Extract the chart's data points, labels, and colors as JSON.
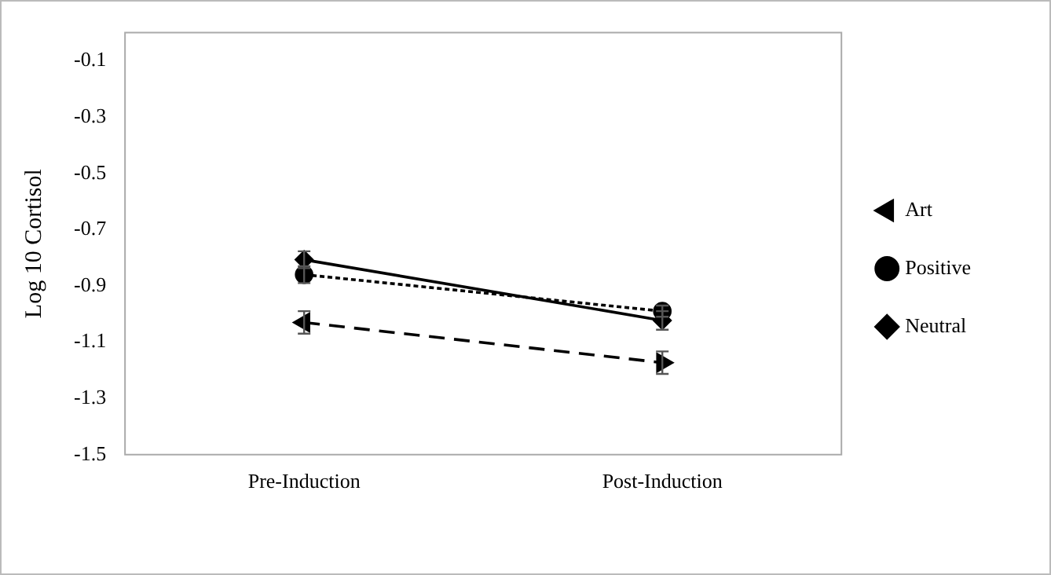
{
  "chart_data": {
    "type": "line",
    "ylabel": "Log 10 Cortisol",
    "categories": [
      "Pre-Induction",
      "Post-Induction"
    ],
    "series": [
      {
        "name": "Art",
        "color": "#000000",
        "values": [
          -1.03,
          -1.173
        ],
        "errors": [
          0.04,
          0.04
        ],
        "marker": "triangle",
        "line_style": "dashed"
      },
      {
        "name": "Positive",
        "color": "#000000",
        "values": [
          -0.86,
          -0.99
        ],
        "errors": [
          0.03,
          0.02
        ],
        "marker": "circle",
        "line_style": "dotted"
      },
      {
        "name": "Neutral",
        "color": "#000000",
        "values": [
          -0.807,
          -1.023
        ],
        "errors": [
          0.03,
          0.033
        ],
        "marker": "diamond",
        "line_style": "solid"
      }
    ],
    "ylim": [
      -1.5,
      0
    ],
    "yticks": [
      -1.5,
      -1.3,
      -1.1,
      -0.9,
      -0.7,
      -0.5,
      -0.3,
      -0.1
    ],
    "grid": false,
    "legend": "right"
  }
}
